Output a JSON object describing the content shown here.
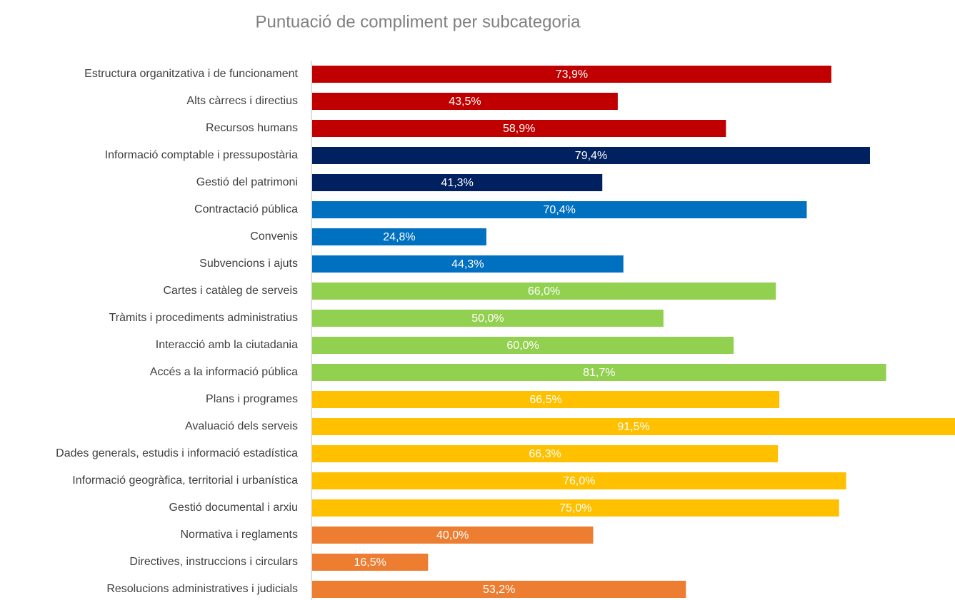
{
  "chart_data": {
    "type": "barh",
    "title": "Puntuació de compliment per subcategoria",
    "categories": [
      "Estructura organitzativa i de funcionament",
      "Alts càrrecs i directius",
      "Recursos humans",
      "Informació comptable i pressupostària",
      "Gestió del patrimoni",
      "Contractació pública",
      "Convenis",
      "Subvencions i ajuts",
      "Cartes i catàleg de serveis",
      "Tràmits i procediments administratius",
      "Interacció amb la ciutadania",
      "Accés a la informació pública",
      "Plans i programes",
      "Avaluació dels serveis",
      "Dades generals, estudis i informació estadística",
      "Informació geogràfica, territorial i urbanística",
      "Gestió documental i arxiu",
      "Normativa i reglaments",
      "Directives, instruccions i circulars",
      "Resolucions administratives i judicials"
    ],
    "values": [
      73.9,
      43.5,
      58.9,
      79.4,
      41.3,
      70.4,
      24.8,
      44.3,
      66.0,
      50.0,
      60.0,
      81.7,
      66.5,
      91.5,
      66.3,
      76.0,
      75.0,
      40.0,
      16.5,
      53.2
    ],
    "value_labels": [
      "73,9%",
      "43,5%",
      "58,9%",
      "79,4%",
      "41,3%",
      "70,4%",
      "24,8%",
      "44,3%",
      "66,0%",
      "50,0%",
      "60,0%",
      "81,7%",
      "66,5%",
      "91,5%",
      "66,3%",
      "76,0%",
      "75,0%",
      "40,0%",
      "16,5%",
      "53,2%"
    ],
    "colors": [
      "#c00000",
      "#c00000",
      "#c00000",
      "#002060",
      "#002060",
      "#0070c0",
      "#0070c0",
      "#0070c0",
      "#92d050",
      "#92d050",
      "#92d050",
      "#92d050",
      "#ffc000",
      "#ffc000",
      "#ffc000",
      "#ffc000",
      "#ffc000",
      "#ed7d31",
      "#ed7d31",
      "#ed7d31"
    ],
    "xlim": [
      0,
      91.5
    ]
  }
}
